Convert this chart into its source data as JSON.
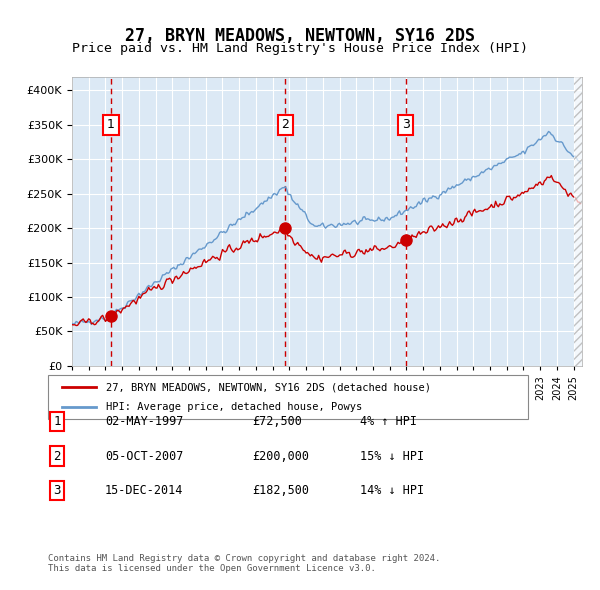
{
  "title": "27, BRYN MEADOWS, NEWTOWN, SY16 2DS",
  "subtitle": "Price paid vs. HM Land Registry's House Price Index (HPI)",
  "legend_line1": "27, BRYN MEADOWS, NEWTOWN, SY16 2DS (detached house)",
  "legend_line2": "HPI: Average price, detached house, Powys",
  "sale_points": [
    {
      "label": "1",
      "date": "1997-05-02",
      "price": 72500,
      "pct": "4%",
      "dir": "↑",
      "marker_x": 1997.33
    },
    {
      "label": "2",
      "date": "2007-10-05",
      "price": 200000,
      "pct": "15%",
      "dir": "↓",
      "marker_x": 2007.76
    },
    {
      "label": "3",
      "date": "2014-12-15",
      "price": 182500,
      "pct": "14%",
      "dir": "↓",
      "marker_x": 2014.95
    }
  ],
  "table_rows": [
    {
      "num": "1",
      "date": "02-MAY-1997",
      "price": "£72,500",
      "hpi": "4% ↑ HPI"
    },
    {
      "num": "2",
      "date": "05-OCT-2007",
      "price": "£200,000",
      "hpi": "15% ↓ HPI"
    },
    {
      "num": "3",
      "date": "15-DEC-2014",
      "price": "£182,500",
      "hpi": "14% ↓ HPI"
    }
  ],
  "footer": "Contains HM Land Registry data © Crown copyright and database right 2024.\nThis data is licensed under the Open Government Licence v3.0.",
  "hpi_color": "#6699cc",
  "property_color": "#cc0000",
  "dashed_color": "#cc0000",
  "bg_color": "#dce9f5",
  "plot_bg": "#dce9f5",
  "ylim": [
    0,
    420000
  ],
  "yticks": [
    0,
    50000,
    100000,
    150000,
    200000,
    250000,
    300000,
    350000,
    400000
  ],
  "xlim_start": 1995.0,
  "xlim_end": 2025.5
}
